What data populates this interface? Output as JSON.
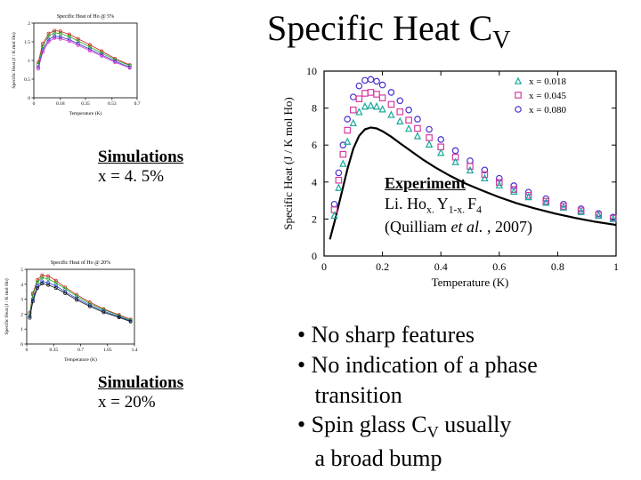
{
  "title_plain": "Specific Heat C",
  "title_sub": "V",
  "sim1": {
    "label_under": "Simulations",
    "label_x": "x = 4. 5%",
    "title": "Specific Heat of Ho @ 5%",
    "xlabel": "Temperature (K)",
    "ylabel": "Specific Heat (J / K mol Ho)",
    "xlim": [
      0,
      0.7
    ],
    "ylim": [
      0,
      2.0
    ],
    "xticks": [
      0,
      0.18,
      0.35,
      0.53,
      0.7
    ],
    "yticks": [
      0.0,
      0.5,
      1.0,
      1.5,
      2.0
    ],
    "series": [
      {
        "color": "#cc2222",
        "x": [
          0.03,
          0.06,
          0.1,
          0.14,
          0.18,
          0.24,
          0.3,
          0.38,
          0.46,
          0.55,
          0.65
        ],
        "y": [
          0.95,
          1.45,
          1.72,
          1.8,
          1.78,
          1.7,
          1.58,
          1.42,
          1.25,
          1.05,
          0.88
        ]
      },
      {
        "color": "#22aa22",
        "x": [
          0.03,
          0.06,
          0.1,
          0.14,
          0.18,
          0.24,
          0.3,
          0.38,
          0.46,
          0.55,
          0.65
        ],
        "y": [
          0.9,
          1.38,
          1.66,
          1.74,
          1.72,
          1.64,
          1.52,
          1.36,
          1.2,
          1.02,
          0.86
        ]
      },
      {
        "color": "#3333cc",
        "x": [
          0.03,
          0.06,
          0.1,
          0.14,
          0.18,
          0.24,
          0.3,
          0.38,
          0.46,
          0.55,
          0.65
        ],
        "y": [
          0.82,
          1.28,
          1.56,
          1.65,
          1.63,
          1.56,
          1.45,
          1.3,
          1.15,
          0.98,
          0.82
        ]
      },
      {
        "color": "#cc33cc",
        "x": [
          0.03,
          0.06,
          0.1,
          0.14,
          0.18,
          0.24,
          0.3,
          0.38,
          0.46,
          0.55,
          0.65
        ],
        "y": [
          0.78,
          1.22,
          1.5,
          1.6,
          1.58,
          1.52,
          1.41,
          1.26,
          1.12,
          0.95,
          0.8
        ]
      }
    ],
    "marker_size": 1.6,
    "grid_color": "#000000",
    "background": "#ffffff",
    "label_fontsize": 5.5
  },
  "sim2": {
    "label_under": "Simulations",
    "label_x": "x = 20%",
    "title": "Specific Heat of Ho @ 20%",
    "xlabel": "Temperature (K)",
    "ylabel": "Specific Heat (J / K mol Ho)",
    "xlim": [
      0,
      1.4
    ],
    "ylim": [
      0,
      5
    ],
    "xticks": [
      0.0,
      0.35,
      0.7,
      1.05,
      1.4
    ],
    "yticks": [
      0,
      1,
      2,
      3,
      4,
      5
    ],
    "series": [
      {
        "color": "#cc2222",
        "x": [
          0.04,
          0.08,
          0.14,
          0.2,
          0.28,
          0.38,
          0.5,
          0.65,
          0.82,
          1.0,
          1.2,
          1.35
        ],
        "y": [
          2.1,
          3.4,
          4.3,
          4.6,
          4.55,
          4.25,
          3.8,
          3.3,
          2.8,
          2.35,
          1.95,
          1.65
        ]
      },
      {
        "color": "#22aa22",
        "x": [
          0.04,
          0.08,
          0.14,
          0.2,
          0.28,
          0.38,
          0.5,
          0.65,
          0.82,
          1.0,
          1.2,
          1.35
        ],
        "y": [
          2.0,
          3.3,
          4.15,
          4.45,
          4.35,
          4.1,
          3.7,
          3.2,
          2.7,
          2.3,
          1.9,
          1.6
        ]
      },
      {
        "color": "#2244dd",
        "x": [
          0.04,
          0.08,
          0.14,
          0.2,
          0.28,
          0.38,
          0.5,
          0.65,
          0.82,
          1.0,
          1.2,
          1.35
        ],
        "y": [
          1.85,
          3.0,
          3.9,
          4.2,
          4.1,
          3.9,
          3.5,
          3.05,
          2.6,
          2.2,
          1.82,
          1.55
        ]
      },
      {
        "color": "#111111",
        "x": [
          0.04,
          0.08,
          0.14,
          0.2,
          0.28,
          0.38,
          0.5,
          0.65,
          0.82,
          1.0,
          1.2,
          1.35
        ],
        "y": [
          1.75,
          2.85,
          3.75,
          4.05,
          3.95,
          3.75,
          3.4,
          2.95,
          2.52,
          2.12,
          1.78,
          1.5
        ]
      }
    ],
    "marker_size": 1.6,
    "grid_color": "#000000",
    "background": "#ffffff",
    "label_fontsize": 5.5
  },
  "exp": {
    "label_under": "Experiment",
    "compound_pre": "Li. Ho",
    "compound_sub1": "x. ",
    "compound_mid": "Y",
    "compound_sub2": "1-x. ",
    "compound_mid2": "F",
    "compound_sub3": "4",
    "citation_pre": "(Quilliam ",
    "citation_ital": "et al. ",
    "citation_post": ", 2007)",
    "xlabel": "Temperature (K)",
    "ylabel": "Specific Heat (J / K mol Ho)",
    "xlim": [
      0,
      1.0
    ],
    "ylim": [
      0,
      10
    ],
    "xticks": [
      0,
      0.2,
      0.4,
      0.6,
      0.8,
      1.0
    ],
    "yticks": [
      0,
      2,
      4,
      6,
      8,
      10
    ],
    "legend": [
      {
        "label": "x = 0.018",
        "color": "#1aa89b",
        "marker": "triangle"
      },
      {
        "label": "x = 0.045",
        "color": "#d63aa0",
        "marker": "square"
      },
      {
        "label": "x = 0.080",
        "color": "#4a2fcf",
        "marker": "circle"
      }
    ],
    "scatter": [
      {
        "color": "#4a2fcf",
        "marker": "circle",
        "points": [
          [
            0.035,
            2.8
          ],
          [
            0.05,
            4.5
          ],
          [
            0.065,
            6.0
          ],
          [
            0.08,
            7.4
          ],
          [
            0.1,
            8.6
          ],
          [
            0.12,
            9.2
          ],
          [
            0.14,
            9.5
          ],
          [
            0.16,
            9.55
          ],
          [
            0.18,
            9.45
          ],
          [
            0.2,
            9.25
          ],
          [
            0.23,
            8.85
          ],
          [
            0.26,
            8.4
          ],
          [
            0.29,
            7.9
          ],
          [
            0.32,
            7.4
          ],
          [
            0.36,
            6.85
          ],
          [
            0.4,
            6.3
          ],
          [
            0.45,
            5.7
          ],
          [
            0.5,
            5.15
          ],
          [
            0.55,
            4.65
          ],
          [
            0.6,
            4.2
          ],
          [
            0.65,
            3.8
          ],
          [
            0.7,
            3.45
          ],
          [
            0.76,
            3.1
          ],
          [
            0.82,
            2.8
          ],
          [
            0.88,
            2.55
          ],
          [
            0.94,
            2.3
          ],
          [
            0.99,
            2.1
          ]
        ]
      },
      {
        "color": "#d63aa0",
        "marker": "square",
        "points": [
          [
            0.035,
            2.5
          ],
          [
            0.05,
            4.1
          ],
          [
            0.065,
            5.5
          ],
          [
            0.08,
            6.8
          ],
          [
            0.1,
            7.9
          ],
          [
            0.12,
            8.5
          ],
          [
            0.14,
            8.8
          ],
          [
            0.16,
            8.85
          ],
          [
            0.18,
            8.75
          ],
          [
            0.2,
            8.55
          ],
          [
            0.23,
            8.2
          ],
          [
            0.26,
            7.8
          ],
          [
            0.29,
            7.35
          ],
          [
            0.32,
            6.9
          ],
          [
            0.36,
            6.4
          ],
          [
            0.4,
            5.9
          ],
          [
            0.45,
            5.35
          ],
          [
            0.5,
            4.85
          ],
          [
            0.55,
            4.4
          ],
          [
            0.6,
            3.98
          ],
          [
            0.65,
            3.6
          ],
          [
            0.7,
            3.28
          ],
          [
            0.76,
            2.96
          ],
          [
            0.82,
            2.68
          ],
          [
            0.88,
            2.44
          ],
          [
            0.94,
            2.22
          ],
          [
            0.99,
            2.04
          ]
        ]
      },
      {
        "color": "#1aa89b",
        "marker": "triangle",
        "points": [
          [
            0.035,
            2.2
          ],
          [
            0.05,
            3.7
          ],
          [
            0.065,
            5.0
          ],
          [
            0.08,
            6.2
          ],
          [
            0.1,
            7.2
          ],
          [
            0.12,
            7.8
          ],
          [
            0.14,
            8.1
          ],
          [
            0.16,
            8.15
          ],
          [
            0.18,
            8.1
          ],
          [
            0.2,
            7.95
          ],
          [
            0.23,
            7.65
          ],
          [
            0.26,
            7.3
          ],
          [
            0.29,
            6.9
          ],
          [
            0.32,
            6.5
          ],
          [
            0.36,
            6.05
          ],
          [
            0.4,
            5.6
          ],
          [
            0.45,
            5.1
          ],
          [
            0.5,
            4.65
          ],
          [
            0.55,
            4.22
          ],
          [
            0.6,
            3.84
          ],
          [
            0.65,
            3.5
          ],
          [
            0.7,
            3.2
          ],
          [
            0.76,
            2.9
          ],
          [
            0.82,
            2.64
          ],
          [
            0.88,
            2.4
          ],
          [
            0.94,
            2.2
          ],
          [
            0.99,
            2.02
          ]
        ]
      }
    ],
    "curve": {
      "color": "#000000",
      "width": 2.2,
      "points": [
        [
          0.02,
          0.9
        ],
        [
          0.04,
          2.1
        ],
        [
          0.06,
          3.4
        ],
        [
          0.08,
          4.7
        ],
        [
          0.1,
          5.8
        ],
        [
          0.12,
          6.5
        ],
        [
          0.14,
          6.85
        ],
        [
          0.16,
          6.95
        ],
        [
          0.18,
          6.9
        ],
        [
          0.2,
          6.75
        ],
        [
          0.23,
          6.45
        ],
        [
          0.26,
          6.1
        ],
        [
          0.3,
          5.65
        ],
        [
          0.34,
          5.2
        ],
        [
          0.38,
          4.8
        ],
        [
          0.43,
          4.35
        ],
        [
          0.48,
          3.95
        ],
        [
          0.54,
          3.55
        ],
        [
          0.6,
          3.18
        ],
        [
          0.66,
          2.85
        ],
        [
          0.72,
          2.58
        ],
        [
          0.79,
          2.3
        ],
        [
          0.86,
          2.06
        ],
        [
          0.93,
          1.85
        ],
        [
          1.0,
          1.68
        ]
      ]
    },
    "grid_color": "#000000",
    "background": "#ffffff",
    "label_fontsize": 13,
    "tick_fontsize": 12,
    "marker_size": 3.2
  },
  "bullets": {
    "l1": "• No sharp features",
    "l2": "• No indication of a phase",
    "l3": "   transition",
    "l4a": "• Spin glass C",
    "l4sub": "V",
    "l4b": " usually",
    "l5": "   a broad bump"
  }
}
